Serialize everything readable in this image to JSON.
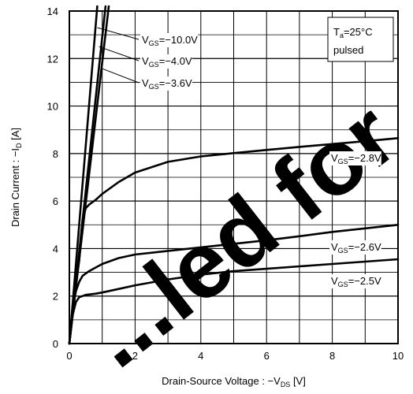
{
  "chart_data": {
    "type": "line",
    "xlabel": {
      "main": "Drain-Source Voltage : −V",
      "sub": "DS",
      "unit": " [V]"
    },
    "ylabel": {
      "main": "Drain Current : −I",
      "sub": "D",
      "unit": " [A]"
    },
    "xlim": [
      0,
      10
    ],
    "ylim": [
      0,
      14
    ],
    "xticks": [
      0,
      2,
      4,
      6,
      8,
      10
    ],
    "yticks": [
      0,
      2,
      4,
      6,
      8,
      10,
      12,
      14
    ],
    "grid": true,
    "conditions": {
      "t_main": "T",
      "t_sub": "a",
      "t_rest": "=25°C",
      "line2": "pulsed"
    },
    "watermark": "...led for",
    "series": [
      {
        "name": "VGS=−10.0V",
        "gate": "=−10.0V",
        "x": [
          0,
          1.1
        ],
        "y": [
          0,
          14.2
        ]
      },
      {
        "name": "VGS=−4.0V",
        "gate": "=−4.0V",
        "x": [
          0,
          1.2
        ],
        "y": [
          0,
          14.2
        ]
      },
      {
        "name": "VGS=−3.6V",
        "gate": "=−3.6V",
        "x": [
          0,
          0.85
        ],
        "y": [
          0,
          14.2
        ]
      },
      {
        "name": "VGS=−2.8V",
        "gate": "=−2.8V",
        "x": [
          0,
          0.1,
          0.2,
          0.3,
          0.4,
          0.5,
          0.6,
          0.8,
          1.0,
          1.5,
          2.0,
          3.0,
          4.0,
          5.0,
          6.0,
          7.0,
          8.0,
          9.0,
          10.0
        ],
        "y": [
          0,
          1.6,
          2.5,
          3.5,
          5.2,
          5.7,
          5.85,
          6.05,
          6.3,
          6.8,
          7.2,
          7.65,
          7.88,
          8.02,
          8.15,
          8.28,
          8.4,
          8.52,
          8.65
        ]
      },
      {
        "name": "VGS=−2.6V",
        "gate": "=−2.6V",
        "x": [
          0,
          0.1,
          0.2,
          0.3,
          0.4,
          0.6,
          0.8,
          1.0,
          1.5,
          2.0,
          3.0,
          4.0,
          5.0,
          6.0,
          7.0,
          8.0,
          9.0,
          10.0
        ],
        "y": [
          0,
          1.5,
          2.2,
          2.6,
          2.85,
          3.05,
          3.2,
          3.35,
          3.6,
          3.75,
          3.9,
          4.05,
          4.2,
          4.35,
          4.52,
          4.7,
          4.85,
          5.0
        ]
      },
      {
        "name": "VGS=−2.5V",
        "gate": "=−2.5V",
        "x": [
          0,
          0.1,
          0.2,
          0.3,
          0.5,
          0.8,
          1.0,
          1.5,
          2.0,
          3.0,
          4.0,
          5.0,
          6.0,
          7.0,
          8.0,
          9.0,
          10.0
        ],
        "y": [
          0,
          1.2,
          1.75,
          1.95,
          2.05,
          2.1,
          2.15,
          2.3,
          2.45,
          2.7,
          2.9,
          3.05,
          3.15,
          3.25,
          3.35,
          3.45,
          3.55
        ]
      }
    ]
  }
}
